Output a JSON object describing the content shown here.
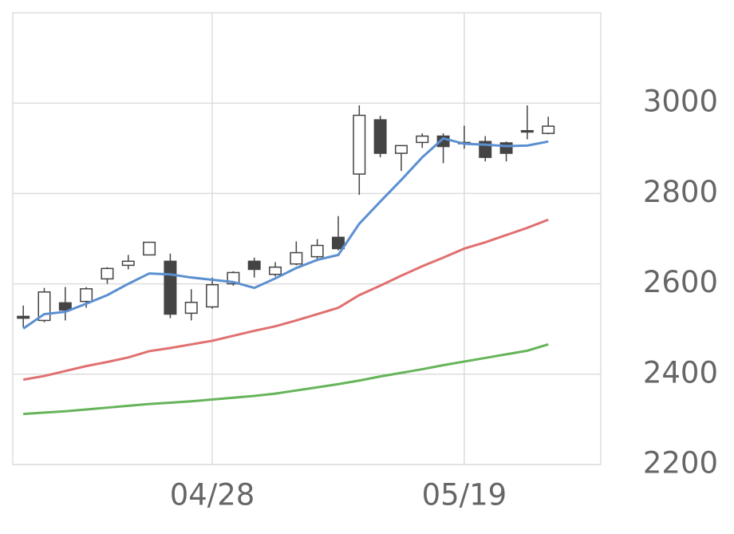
{
  "chart_data": {
    "type": "candlestick",
    "categories": [
      null,
      null,
      null,
      null,
      null,
      null,
      null,
      null,
      null,
      "04/28",
      null,
      null,
      null,
      null,
      null,
      null,
      null,
      null,
      null,
      null,
      null,
      "05/19",
      null,
      null,
      null,
      null
    ],
    "open": [
      2528,
      2519,
      2558,
      2561,
      2611,
      2641,
      2664,
      2650,
      2535,
      2549,
      2600,
      2650,
      2621,
      2644,
      2660,
      2703,
      2843,
      2963,
      2889,
      2913,
      2927,
      2913,
      2915,
      2912,
      2939,
      2933
    ],
    "high": [
      2552,
      2591,
      2593,
      2593,
      2637,
      2664,
      2692,
      2667,
      2588,
      2614,
      2628,
      2658,
      2648,
      2694,
      2699,
      2750,
      2995,
      2972,
      2906,
      2933,
      2933,
      2950,
      2927,
      2915,
      2995,
      2970
    ],
    "low": [
      2504,
      2515,
      2519,
      2547,
      2600,
      2632,
      2664,
      2524,
      2519,
      2545,
      2596,
      2614,
      2616,
      2641,
      2650,
      2674,
      2797,
      2880,
      2850,
      2901,
      2867,
      2899,
      2871,
      2871,
      2920,
      2931
    ],
    "close": [
      2524,
      2582,
      2542,
      2589,
      2634,
      2650,
      2692,
      2533,
      2559,
      2598,
      2625,
      2632,
      2637,
      2669,
      2685,
      2678,
      2973,
      2889,
      2906,
      2927,
      2904,
      2911,
      2880,
      2889,
      2936,
      2949
    ],
    "up_color": "#ffffff",
    "down_color": "#444444",
    "edge_color": "#444444",
    "lines": [
      {
        "color": "#5b8fd0",
        "values": [
          2501,
          2533,
          2538,
          2556,
          2575,
          2600,
          2623,
          2621,
          2614,
          2609,
          2604,
          2591,
          2612,
          2635,
          2653,
          2664,
          2733,
          2782,
          2830,
          2880,
          2922,
          2910,
          2908,
          2905,
          2906,
          2915
        ]
      },
      {
        "color": "#e07070",
        "values": [
          2388,
          2396,
          2407,
          2418,
          2427,
          2437,
          2451,
          2458,
          2466,
          2474,
          2485,
          2496,
          2506,
          2519,
          2533,
          2547,
          2575,
          2596,
          2618,
          2639,
          2658,
          2678,
          2692,
          2708,
          2724,
          2742
        ]
      },
      {
        "color": "#66b45a",
        "values": [
          2312,
          2315,
          2318,
          2322,
          2326,
          2330,
          2334,
          2337,
          2340,
          2344,
          2348,
          2352,
          2357,
          2364,
          2371,
          2378,
          2386,
          2395,
          2403,
          2411,
          2420,
          2428,
          2436,
          2444,
          2452,
          2466
        ]
      }
    ],
    "ylim": [
      2200,
      3200
    ],
    "yticks": [
      2200,
      2400,
      2600,
      2800,
      3000
    ],
    "grid": true,
    "y_axis_side": "right"
  }
}
